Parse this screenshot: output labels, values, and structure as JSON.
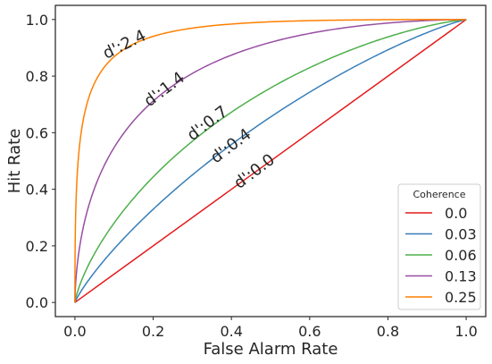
{
  "chart_data": {
    "type": "line",
    "xlabel": "False Alarm Rate",
    "ylabel": "Hit Rate",
    "xlim": [
      -0.05,
      1.05
    ],
    "ylim": [
      -0.05,
      1.05
    ],
    "xticks": [
      0.0,
      0.2,
      0.4,
      0.6,
      0.8,
      1.0
    ],
    "yticks": [
      0.0,
      0.2,
      0.4,
      0.6,
      0.8,
      1.0
    ],
    "xtick_labels": [
      "0.0",
      "0.2",
      "0.4",
      "0.6",
      "0.8",
      "1.0"
    ],
    "ytick_labels": [
      "0.0",
      "0.2",
      "0.4",
      "0.6",
      "0.8",
      "1.0"
    ],
    "grid": false,
    "legend": {
      "title": "Coherence",
      "placement": "lower-right"
    },
    "series": [
      {
        "name": "0.0",
        "color": "#e41a1c",
        "dprime": 0.0,
        "annotation": "d':0.0",
        "x": [
          0.0,
          0.05,
          0.1,
          0.2,
          0.3,
          0.4,
          0.5,
          0.6,
          0.7,
          0.8,
          0.9,
          1.0
        ],
        "y": [
          0.0,
          0.05,
          0.1,
          0.2,
          0.3,
          0.4,
          0.5,
          0.6,
          0.7,
          0.8,
          0.9,
          1.0
        ]
      },
      {
        "name": "0.03",
        "color": "#377eb8",
        "dprime": 0.4,
        "annotation": "d':0.4",
        "x": [
          0.0,
          0.01,
          0.05,
          0.1,
          0.2,
          0.3,
          0.4,
          0.5,
          0.6,
          0.7,
          0.8,
          0.9,
          1.0
        ],
        "y": [
          0.0,
          0.02,
          0.09,
          0.16,
          0.3,
          0.41,
          0.52,
          0.65,
          0.73,
          0.81,
          0.88,
          0.95,
          1.0
        ]
      },
      {
        "name": "0.06",
        "color": "#4daf4a",
        "dprime": 0.7,
        "annotation": "d':0.7",
        "x": [
          0.0,
          0.01,
          0.05,
          0.1,
          0.2,
          0.3,
          0.4,
          0.5,
          0.6,
          0.7,
          0.8,
          0.9,
          1.0
        ],
        "y": [
          0.0,
          0.05,
          0.17,
          0.27,
          0.42,
          0.55,
          0.66,
          0.75,
          0.82,
          0.88,
          0.93,
          0.97,
          1.0
        ]
      },
      {
        "name": "0.13",
        "color": "#984ea3",
        "dprime": 1.4,
        "annotation": "d':1.4",
        "x": [
          0.0,
          0.005,
          0.01,
          0.02,
          0.05,
          0.1,
          0.2,
          0.3,
          0.4,
          0.5,
          0.6,
          0.7,
          0.8,
          0.9,
          1.0
        ],
        "y": [
          0.0,
          0.11,
          0.16,
          0.24,
          0.38,
          0.52,
          0.69,
          0.79,
          0.85,
          0.9,
          0.94,
          0.96,
          0.98,
          0.99,
          1.0
        ]
      },
      {
        "name": "0.25",
        "color": "#ff7f00",
        "dprime": 2.4,
        "annotation": "d':2.4",
        "x": [
          0.0,
          0.001,
          0.005,
          0.01,
          0.02,
          0.05,
          0.1,
          0.2,
          0.3,
          0.4,
          0.5,
          0.6,
          0.7,
          0.8,
          0.9,
          1.0
        ],
        "y": [
          0.0,
          0.21,
          0.42,
          0.51,
          0.62,
          0.77,
          0.86,
          0.93,
          0.96,
          0.97,
          0.98,
          0.99,
          0.99,
          0.99,
          1.0,
          1.0
        ]
      }
    ]
  }
}
